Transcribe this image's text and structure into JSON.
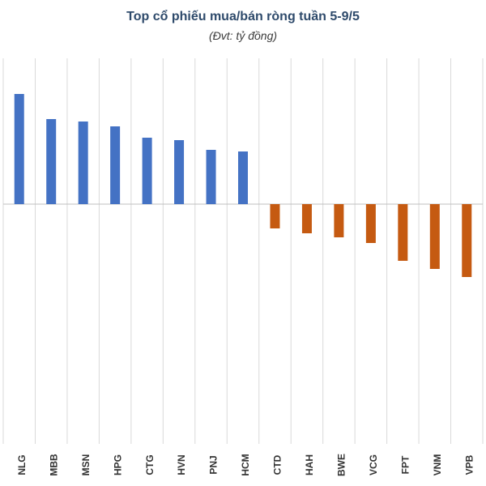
{
  "chart_data": {
    "type": "bar",
    "title": "Top cổ phiếu mua/bán ròng tuần 5-9/5",
    "subtitle": "(Đvt: tỷ đồng)",
    "xlabel": "",
    "ylabel": "",
    "grid": "vertical",
    "legend": "none",
    "categories": [
      "NLG",
      "MBB",
      "MSN",
      "HPG",
      "CTG",
      "HVN",
      "PNJ",
      "HCM",
      "CTD",
      "HAH",
      "BWE",
      "VCG",
      "FPT",
      "VNM",
      "VPB"
    ],
    "values": [
      136,
      105,
      102,
      96,
      82,
      79,
      67,
      65,
      -30,
      -36,
      -41,
      -48,
      -70,
      -80,
      -90
    ],
    "ylim": [
      -300,
      180
    ],
    "colors": {
      "positive": "#4472c4",
      "negative": "#c55a11",
      "grid": "#d9d9d9",
      "baseline": "#bfbfbf"
    }
  }
}
